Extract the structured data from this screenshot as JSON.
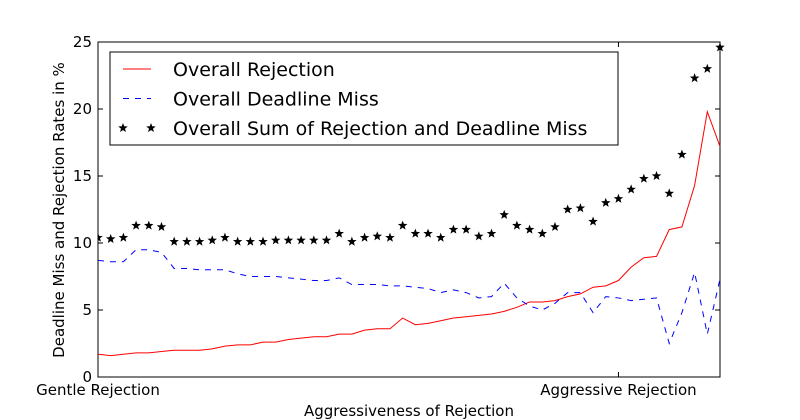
{
  "chart_data": {
    "type": "line",
    "xlabel": "Aggressiveness of Rejection",
    "ylabel": "Deadline Miss and Rejection Rates in %",
    "x": [
      0,
      1,
      2,
      3,
      4,
      5,
      6,
      7,
      8,
      9,
      10,
      11,
      12,
      13,
      14,
      15,
      16,
      17,
      18,
      19,
      20,
      21,
      22,
      23,
      24,
      25,
      26,
      27,
      28,
      29,
      30,
      31,
      32,
      33,
      34,
      35,
      36,
      37,
      38,
      39,
      40,
      41,
      42,
      43,
      44,
      45,
      46,
      47,
      48,
      49
    ],
    "xlim": [
      0,
      49
    ],
    "xticks": [
      {
        "value": 0,
        "label": "Gentle Rejection"
      },
      {
        "value": 41,
        "label": "Aggressive Rejection"
      }
    ],
    "ylim": [
      0,
      25
    ],
    "yticks": [
      0,
      5,
      10,
      15,
      20,
      25
    ],
    "grid": false,
    "legend": "upper left",
    "series": [
      {
        "name": "Overall Rejection",
        "color": "#ff0000",
        "style": "solid",
        "values": [
          1.7,
          1.6,
          1.7,
          1.8,
          1.8,
          1.9,
          2.0,
          2.0,
          2.0,
          2.1,
          2.3,
          2.4,
          2.4,
          2.6,
          2.6,
          2.8,
          2.9,
          3.0,
          3.0,
          3.2,
          3.2,
          3.5,
          3.6,
          3.6,
          4.4,
          3.9,
          4.0,
          4.2,
          4.4,
          4.5,
          4.6,
          4.7,
          4.9,
          5.2,
          5.6,
          5.6,
          5.7,
          6.0,
          6.2,
          6.7,
          6.8,
          7.2,
          8.2,
          8.9,
          9.0,
          11.0,
          11.2,
          14.3,
          19.8,
          17.2
        ]
      },
      {
        "name": "Overall Deadline Miss",
        "color": "#0000ff",
        "style": "dashed",
        "values": [
          8.7,
          8.6,
          8.6,
          9.5,
          9.5,
          9.3,
          8.1,
          8.1,
          8.0,
          8.0,
          8.0,
          7.7,
          7.5,
          7.5,
          7.5,
          7.4,
          7.3,
          7.2,
          7.2,
          7.4,
          6.9,
          6.9,
          6.9,
          6.8,
          6.8,
          6.7,
          6.6,
          6.3,
          6.5,
          6.3,
          5.9,
          6.0,
          7.0,
          5.9,
          5.3,
          5.0,
          5.5,
          6.3,
          6.3,
          4.8,
          6.0,
          5.9,
          5.7,
          5.8,
          5.9,
          2.5,
          4.8,
          7.8,
          3.2,
          7.3
        ]
      },
      {
        "name": "Overall Sum of Rejection and Deadline Miss",
        "color": "#000000",
        "style": "markers",
        "values": [
          10.4,
          10.3,
          10.4,
          11.3,
          11.3,
          11.2,
          10.1,
          10.1,
          10.1,
          10.2,
          10.4,
          10.1,
          10.1,
          10.1,
          10.2,
          10.2,
          10.2,
          10.2,
          10.2,
          10.7,
          10.1,
          10.4,
          10.5,
          10.4,
          11.3,
          10.7,
          10.7,
          10.4,
          11.0,
          11.0,
          10.5,
          10.7,
          12.1,
          11.3,
          11.0,
          10.7,
          11.2,
          12.5,
          12.6,
          11.6,
          13.0,
          13.3,
          14.0,
          14.8,
          15.0,
          13.7,
          16.6,
          22.3,
          23.0,
          24.6
        ]
      }
    ]
  }
}
